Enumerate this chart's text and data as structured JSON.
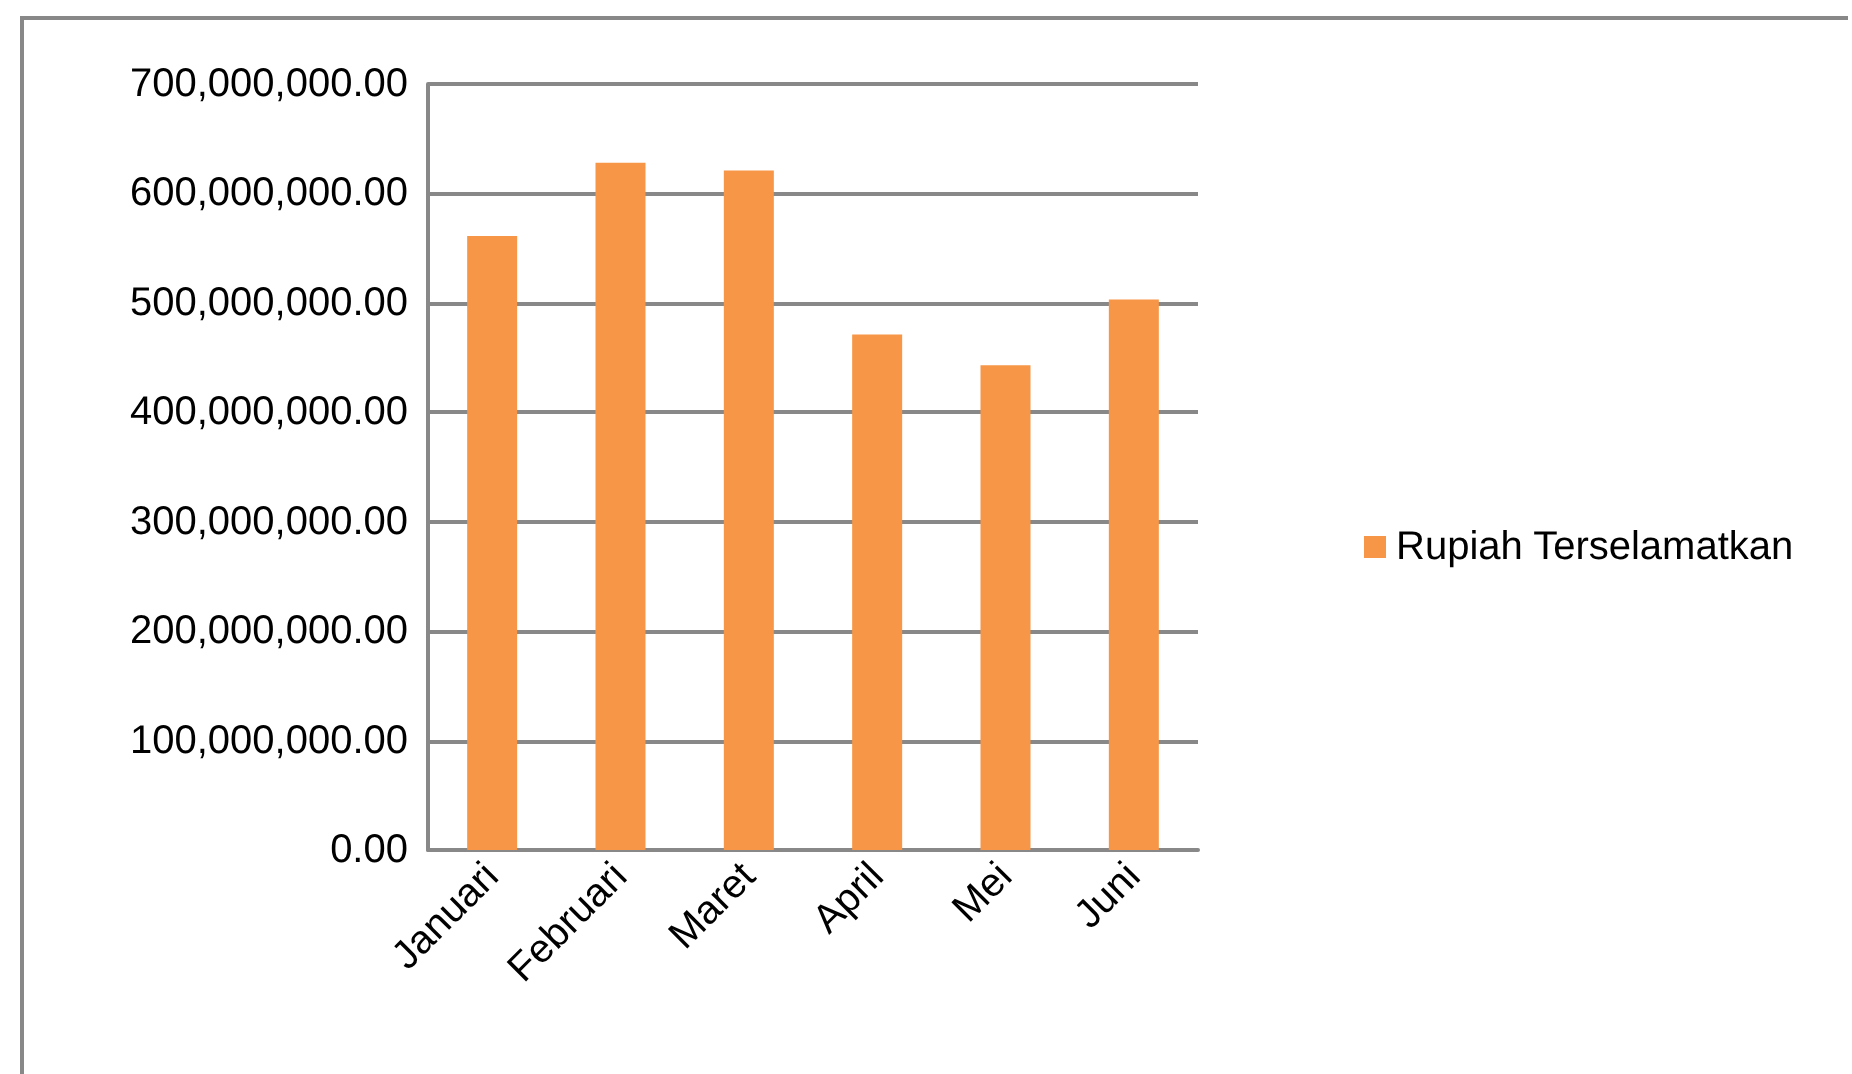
{
  "chart_data": {
    "type": "bar",
    "categories": [
      "Januari",
      "Februari",
      "Maret",
      "April",
      "Mei",
      "Juni"
    ],
    "series": [
      {
        "name": "Rupiah Terselamatkan",
        "color": "#f79646",
        "values": [
          561000000,
          628000000,
          621000000,
          471000000,
          443000000,
          503000000
        ]
      }
    ],
    "ylim": [
      0,
      700000000
    ],
    "yticks": [
      {
        "value": 0,
        "label": "0.00"
      },
      {
        "value": 100000000,
        "label": "100,000,000.00"
      },
      {
        "value": 200000000,
        "label": "200,000,000.00"
      },
      {
        "value": 300000000,
        "label": "300,000,000.00"
      },
      {
        "value": 400000000,
        "label": "400,000,000.00"
      },
      {
        "value": 500000000,
        "label": "500,000,000.00"
      },
      {
        "value": 600000000,
        "label": "600,000,000.00"
      },
      {
        "value": 700000000,
        "label": "700,000,000.00"
      }
    ],
    "grid": true,
    "legend": "right"
  }
}
